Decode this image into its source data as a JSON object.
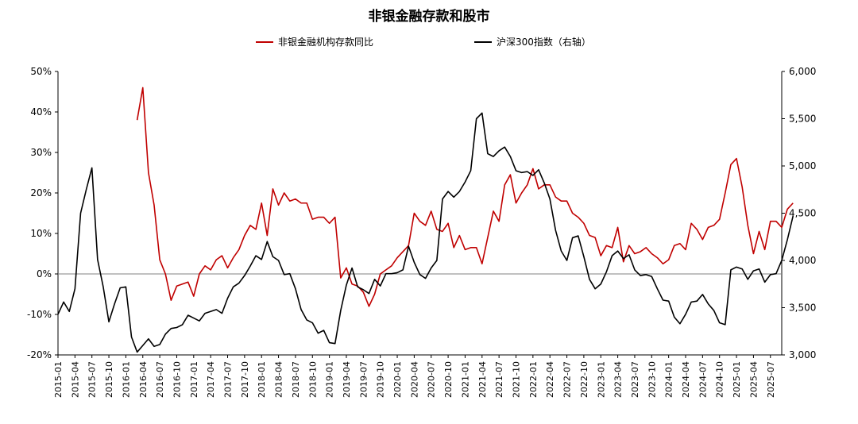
{
  "chart_data": {
    "type": "line",
    "title": "非银金融存款和股市",
    "y_left": {
      "min": -20,
      "max": 50,
      "step": 10,
      "ticks": [
        "-20%",
        "-10%",
        "0%",
        "10%",
        "20%",
        "30%",
        "40%",
        "50%"
      ]
    },
    "y_right": {
      "min": 3000,
      "max": 6000,
      "step": 500,
      "ticks": [
        "3,000",
        "3,500",
        "4,000",
        "4,500",
        "5,000",
        "5,500",
        "6,000"
      ]
    },
    "x_start": "2015-01",
    "x_end": "2025-09",
    "x_tick_labels": [
      "2015-01",
      "2015-04",
      "2015-07",
      "2015-10",
      "2016-01",
      "2016-04",
      "2016-07",
      "2016-10",
      "2017-01",
      "2017-04",
      "2017-07",
      "2017-10",
      "2018-01",
      "2018-04",
      "2018-07",
      "2018-10",
      "2019-01",
      "2019-04",
      "2019-07",
      "2019-10",
      "2020-01",
      "2020-04",
      "2020-07",
      "2020-10",
      "2021-01",
      "2021-04",
      "2021-07",
      "2021-10",
      "2022-01",
      "2022-04",
      "2022-07",
      "2022-10",
      "2023-01",
      "2023-04",
      "2023-07",
      "2023-10",
      "2024-01",
      "2024-04",
      "2024-07",
      "2024-10",
      "2025-01",
      "2025-04",
      "2025-07"
    ],
    "series": [
      {
        "name": "非银金融机构存款同比",
        "axis": "left",
        "color": "#c00000",
        "start_month": "2016-03",
        "values": [
          38,
          46,
          25,
          17,
          3.5,
          0,
          -6.5,
          -3,
          -2.5,
          -2,
          -5.5,
          0,
          2,
          1,
          3.5,
          4.5,
          1.5,
          4,
          6,
          9.5,
          12,
          11,
          17.5,
          9.5,
          21,
          17,
          20,
          18,
          18.5,
          17.5,
          17.5,
          13.5,
          14,
          14,
          12.5,
          14,
          -1,
          1.5,
          -2.5,
          -3,
          -4.5,
          -8,
          -5,
          0,
          1,
          2,
          4,
          5.5,
          7,
          15,
          13,
          12,
          15.5,
          11,
          10.5,
          12.5,
          6.5,
          9.5,
          6,
          6.5,
          6.5,
          2.5,
          9,
          15.5,
          13,
          22,
          24.5,
          17.5,
          20,
          22,
          26,
          21,
          22,
          22,
          19,
          18,
          18,
          15,
          14,
          12.5,
          9.5,
          9,
          4.5,
          7,
          6.5,
          11.5,
          3,
          7,
          5,
          5.5,
          6.5,
          5,
          4,
          2.5,
          3.5,
          7,
          7.5,
          6,
          12.5,
          11,
          8.5,
          11.5,
          12,
          13.5,
          20,
          27,
          28.5,
          21.5,
          12,
          5,
          10.5,
          6,
          13,
          13,
          11.5,
          16,
          17.5
        ]
      },
      {
        "name": "沪深300指数（右轴）",
        "axis": "right",
        "color": "#000000",
        "start_month": "2015-01",
        "values": [
          3430,
          3560,
          3460,
          3700,
          4500,
          4750,
          4980,
          4010,
          3720,
          3350,
          3540,
          3710,
          3720,
          3190,
          3030,
          3100,
          3170,
          3090,
          3110,
          3220,
          3280,
          3290,
          3320,
          3420,
          3390,
          3360,
          3440,
          3460,
          3480,
          3440,
          3600,
          3720,
          3760,
          3840,
          3940,
          4050,
          4010,
          4200,
          4040,
          4000,
          3850,
          3860,
          3700,
          3480,
          3370,
          3340,
          3230,
          3260,
          3130,
          3120,
          3470,
          3740,
          3920,
          3720,
          3690,
          3650,
          3800,
          3730,
          3860,
          3860,
          3870,
          3900,
          4150,
          3980,
          3850,
          3810,
          3920,
          4000,
          4650,
          4730,
          4670,
          4730,
          4830,
          4950,
          5500,
          5560,
          5130,
          5100,
          5160,
          5200,
          5100,
          4950,
          4930,
          4940,
          4900,
          4960,
          4820,
          4650,
          4320,
          4100,
          4000,
          4240,
          4260,
          4040,
          3800,
          3700,
          3750,
          3880,
          4050,
          4100,
          4020,
          4060,
          3900,
          3840,
          3850,
          3830,
          3700,
          3580,
          3570,
          3400,
          3330,
          3430,
          3560,
          3570,
          3640,
          3540,
          3470,
          3340,
          3320,
          3900,
          3930,
          3910,
          3800,
          3890,
          3910,
          3770,
          3850,
          3860,
          4000,
          4220,
          4470
        ]
      }
    ]
  }
}
